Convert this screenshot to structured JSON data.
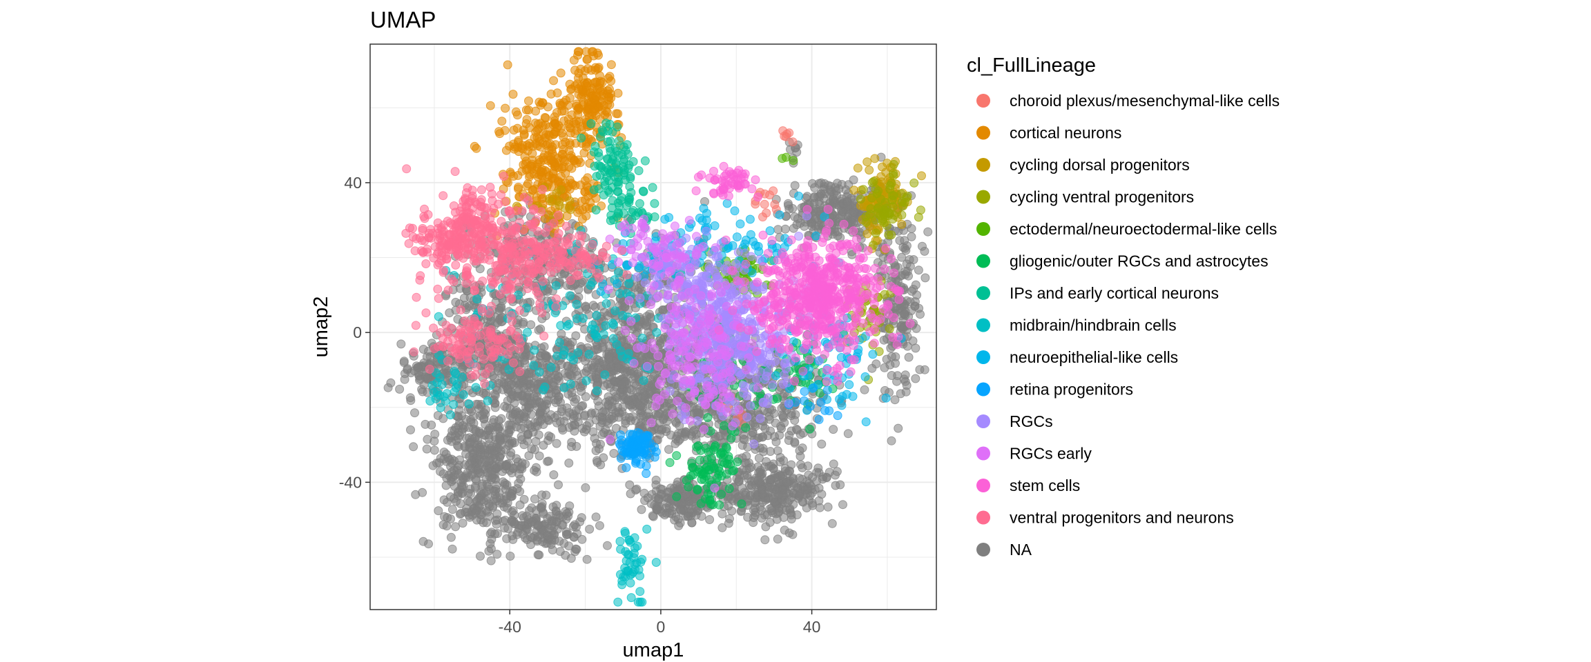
{
  "chart_data": {
    "type": "scatter",
    "title": "UMAP",
    "xlabel": "umap1",
    "ylabel": "umap2",
    "xlim": [
      -77,
      73
    ],
    "ylim": [
      -74,
      77
    ],
    "xticks": [
      -40,
      0,
      40
    ],
    "yticks": [
      -40,
      0,
      40
    ],
    "grid": true,
    "legend_title": "cl_FullLineage",
    "legend_position": "right",
    "series": [
      {
        "name": "choroid plexus/mesenchymal-like cells",
        "color": "#F8766D",
        "clusters": [
          {
            "center": [
              29,
              35
            ],
            "spread": [
              2,
              2
            ],
            "n": 12
          },
          {
            "center": [
              34,
              53
            ],
            "spread": [
              1,
              1
            ],
            "n": 6
          },
          {
            "center": [
              20,
              -20
            ],
            "spread": [
              3,
              3
            ],
            "n": 8
          }
        ]
      },
      {
        "name": "cortical neurons",
        "color": "#E38900",
        "clusters": [
          {
            "center": [
              -30,
              48
            ],
            "spread": [
              7,
              8
            ],
            "n": 260
          },
          {
            "center": [
              -19,
              62
            ],
            "spread": [
              4,
              6
            ],
            "n": 160
          },
          {
            "center": [
              -25,
              36
            ],
            "spread": [
              5,
              4
            ],
            "n": 60
          }
        ]
      },
      {
        "name": "cycling dorsal progenitors",
        "color": "#C49A00",
        "clusters": [
          {
            "center": [
              60,
              38
            ],
            "spread": [
              3,
              4
            ],
            "n": 70
          },
          {
            "center": [
              57,
              30
            ],
            "spread": [
              2,
              4
            ],
            "n": 30
          },
          {
            "center": [
              -30,
              34
            ],
            "spread": [
              3,
              3
            ],
            "n": 15
          }
        ]
      },
      {
        "name": "cycling ventral progenitors",
        "color": "#99A800",
        "clusters": [
          {
            "center": [
              60,
              35
            ],
            "spread": [
              3,
              5
            ],
            "n": 60
          },
          {
            "center": [
              55,
              5
            ],
            "spread": [
              4,
              6
            ],
            "n": 40
          }
        ]
      },
      {
        "name": "ectodermal/neuroectodermal-like cells",
        "color": "#53B400",
        "clusters": [
          {
            "center": [
              20,
              16
            ],
            "spread": [
              4,
              3
            ],
            "n": 60
          },
          {
            "center": [
              33,
              46
            ],
            "spread": [
              1,
              1
            ],
            "n": 3
          }
        ]
      },
      {
        "name": "gliogenic/outer RGCs and astrocytes",
        "color": "#00BC56",
        "clusters": [
          {
            "center": [
              13,
              -37
            ],
            "spread": [
              4,
              5
            ],
            "n": 80
          },
          {
            "center": [
              18,
              -10
            ],
            "spread": [
              6,
              6
            ],
            "n": 50
          },
          {
            "center": [
              36,
              -10
            ],
            "spread": [
              5,
              5
            ],
            "n": 40
          }
        ]
      },
      {
        "name": "IPs and early cortical neurons",
        "color": "#00C094",
        "clusters": [
          {
            "center": [
              -13,
              45
            ],
            "spread": [
              3,
              5
            ],
            "n": 80
          },
          {
            "center": [
              -8,
              33
            ],
            "spread": [
              3,
              3
            ],
            "n": 40
          }
        ]
      },
      {
        "name": "midbrain/hindbrain cells",
        "color": "#00BFC4",
        "clusters": [
          {
            "center": [
              -8,
              -62
            ],
            "spread": [
              2,
              5
            ],
            "n": 45
          },
          {
            "center": [
              -55,
              -15
            ],
            "spread": [
              5,
              5
            ],
            "n": 30
          },
          {
            "center": [
              -30,
              5
            ],
            "spread": [
              14,
              12
            ],
            "n": 80
          },
          {
            "center": [
              -10,
              0
            ],
            "spread": [
              6,
              8
            ],
            "n": 40
          }
        ]
      },
      {
        "name": "neuroepithelial-like cells",
        "color": "#00B6EB",
        "clusters": [
          {
            "center": [
              20,
              25
            ],
            "spread": [
              10,
              5
            ],
            "n": 70
          },
          {
            "center": [
              45,
              -5
            ],
            "spread": [
              6,
              8
            ],
            "n": 70
          },
          {
            "center": [
              -5,
              20
            ],
            "spread": [
              6,
              4
            ],
            "n": 40
          }
        ]
      },
      {
        "name": "retina progenitors",
        "color": "#06A4FF",
        "clusters": [
          {
            "center": [
              -6,
              -31
            ],
            "spread": [
              2,
              2
            ],
            "n": 90
          },
          {
            "center": [
              40,
              -18
            ],
            "spread": [
              3,
              3
            ],
            "n": 12
          }
        ]
      },
      {
        "name": "RGCs",
        "color": "#A58AFF",
        "clusters": [
          {
            "center": [
              18,
              -2
            ],
            "spread": [
              8,
              10
            ],
            "n": 420
          },
          {
            "center": [
              8,
              15
            ],
            "spread": [
              6,
              6
            ],
            "n": 100
          }
        ]
      },
      {
        "name": "RGCs early",
        "color": "#DF70F8",
        "clusters": [
          {
            "center": [
              10,
              -5
            ],
            "spread": [
              8,
              10
            ],
            "n": 200
          },
          {
            "center": [
              0,
              22
            ],
            "spread": [
              6,
              4
            ],
            "n": 80
          }
        ]
      },
      {
        "name": "stem cells",
        "color": "#FB61D7",
        "clusters": [
          {
            "center": [
              42,
              10
            ],
            "spread": [
              8,
              8
            ],
            "n": 550
          },
          {
            "center": [
              18,
              40
            ],
            "spread": [
              3,
              2
            ],
            "n": 50
          }
        ]
      },
      {
        "name": "ventral progenitors and neurons",
        "color": "#FF6C91",
        "clusters": [
          {
            "center": [
              -42,
              22
            ],
            "spread": [
              9,
              8
            ],
            "n": 260
          },
          {
            "center": [
              -56,
              25
            ],
            "spread": [
              5,
              3
            ],
            "n": 100
          },
          {
            "center": [
              -50,
              32
            ],
            "spread": [
              3,
              4
            ],
            "n": 60
          },
          {
            "center": [
              -50,
              -2
            ],
            "spread": [
              7,
              4
            ],
            "n": 100
          },
          {
            "center": [
              -25,
              20
            ],
            "spread": [
              7,
              3
            ],
            "n": 80
          }
        ]
      },
      {
        "name": "NA",
        "color": "#7F7F7F",
        "clusters": [
          {
            "center": [
              -48,
              -35
            ],
            "spread": [
              7,
              10
            ],
            "n": 450
          },
          {
            "center": [
              -33,
              -15
            ],
            "spread": [
              7,
              8
            ],
            "n": 300
          },
          {
            "center": [
              -60,
              -10
            ],
            "spread": [
              5,
              4
            ],
            "n": 120
          },
          {
            "center": [
              -45,
              0
            ],
            "spread": [
              7,
              10
            ],
            "n": 250
          },
          {
            "center": [
              -30,
              -52
            ],
            "spread": [
              6,
              4
            ],
            "n": 150
          },
          {
            "center": [
              -8,
              -12
            ],
            "spread": [
              9,
              10
            ],
            "n": 600
          },
          {
            "center": [
              5,
              -45
            ],
            "spread": [
              5,
              3
            ],
            "n": 150
          },
          {
            "center": [
              30,
              -43
            ],
            "spread": [
              8,
              4
            ],
            "n": 300
          },
          {
            "center": [
              47,
              32
            ],
            "spread": [
              7,
              4
            ],
            "n": 250
          },
          {
            "center": [
              63,
              8
            ],
            "spread": [
              3,
              12
            ],
            "n": 180
          },
          {
            "center": [
              -30,
              20
            ],
            "spread": [
              8,
              6
            ],
            "n": 200
          },
          {
            "center": [
              20,
              -20
            ],
            "spread": [
              12,
              9
            ],
            "n": 450
          },
          {
            "center": [
              -5,
              10
            ],
            "spread": [
              10,
              8
            ],
            "n": 150
          },
          {
            "center": [
              35,
              50
            ],
            "spread": [
              1,
              2
            ],
            "n": 8
          }
        ]
      }
    ]
  }
}
